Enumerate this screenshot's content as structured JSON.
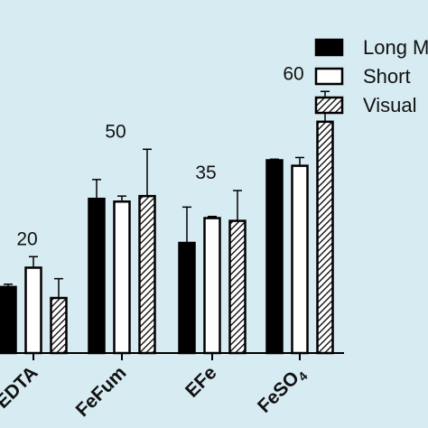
{
  "chart_data": {
    "type": "bar",
    "categories": [
      "EDTA",
      "FeFum",
      "EFe",
      "FeSO"
    ],
    "category_subscript": [
      "",
      "",
      "",
      "4"
    ],
    "group_labels": [
      "20",
      "50",
      "35",
      "60"
    ],
    "series": [
      {
        "name": "Long M",
        "pattern": "solid",
        "values": [
          1.2,
          2.8,
          2.0,
          3.5
        ],
        "errors": [
          0.05,
          0.35,
          0.65,
          0.02
        ]
      },
      {
        "name": "Short",
        "pattern": "open",
        "values": [
          1.55,
          2.75,
          2.45,
          3.4
        ],
        "errors": [
          0.2,
          0.1,
          0.03,
          0.15
        ]
      },
      {
        "name": "Visual",
        "pattern": "hatched",
        "values": [
          1.0,
          2.85,
          2.4,
          4.2
        ],
        "errors": [
          0.35,
          0.85,
          0.55,
          0.55
        ]
      }
    ],
    "legend_position": "top-right",
    "ylim": [
      0,
      5.5
    ],
    "colors": {
      "background": "#d7ebf2",
      "bar": "#000000",
      "open_fill": "#ffffff"
    }
  }
}
